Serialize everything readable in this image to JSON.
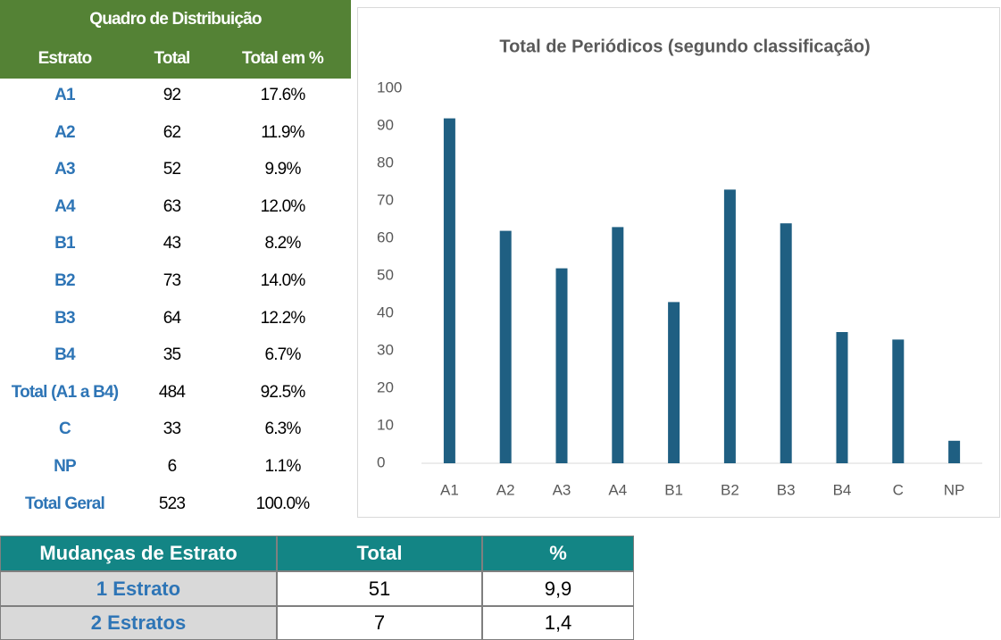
{
  "table": {
    "title": "Quadro de Distribuição",
    "header": [
      "Estrato",
      "Total",
      "Total em %"
    ],
    "rows": [
      [
        "A1",
        "92",
        "17.6%"
      ],
      [
        "A2",
        "62",
        "11.9%"
      ],
      [
        "A3",
        "52",
        "9.9%"
      ],
      [
        "A4",
        "63",
        "12.0%"
      ],
      [
        "B1",
        "43",
        "8.2%"
      ],
      [
        "B2",
        "73",
        "14.0%"
      ],
      [
        "B3",
        "64",
        "12.2%"
      ],
      [
        "B4",
        "35",
        "6.7%"
      ],
      [
        "Total (A1 a B4)",
        "484",
        "92.5%"
      ],
      [
        "C",
        "33",
        "6.3%"
      ],
      [
        "NP",
        "6",
        "1.1%"
      ],
      [
        "Total Geral",
        "523",
        "100.0%"
      ]
    ]
  },
  "chart_data": {
    "type": "bar",
    "title": "Total de Periódicos (segundo classificação)",
    "categories": [
      "A1",
      "A2",
      "A3",
      "A4",
      "B1",
      "B2",
      "B3",
      "B4",
      "C",
      "NP"
    ],
    "values": [
      92,
      62,
      52,
      63,
      43,
      73,
      64,
      35,
      33,
      6
    ],
    "color": "#1f5f82",
    "ylim": [
      0,
      100
    ],
    "yticks": [
      0,
      10,
      20,
      30,
      40,
      50,
      60,
      70,
      80,
      90,
      100
    ],
    "grid": false
  },
  "table2": {
    "header": [
      "Mudanças de Estrato",
      "Total",
      "%"
    ],
    "rows": [
      [
        "1 Estrato",
        "51",
        "9,9"
      ],
      [
        "2 Estratos",
        "7",
        "1,4"
      ]
    ]
  }
}
